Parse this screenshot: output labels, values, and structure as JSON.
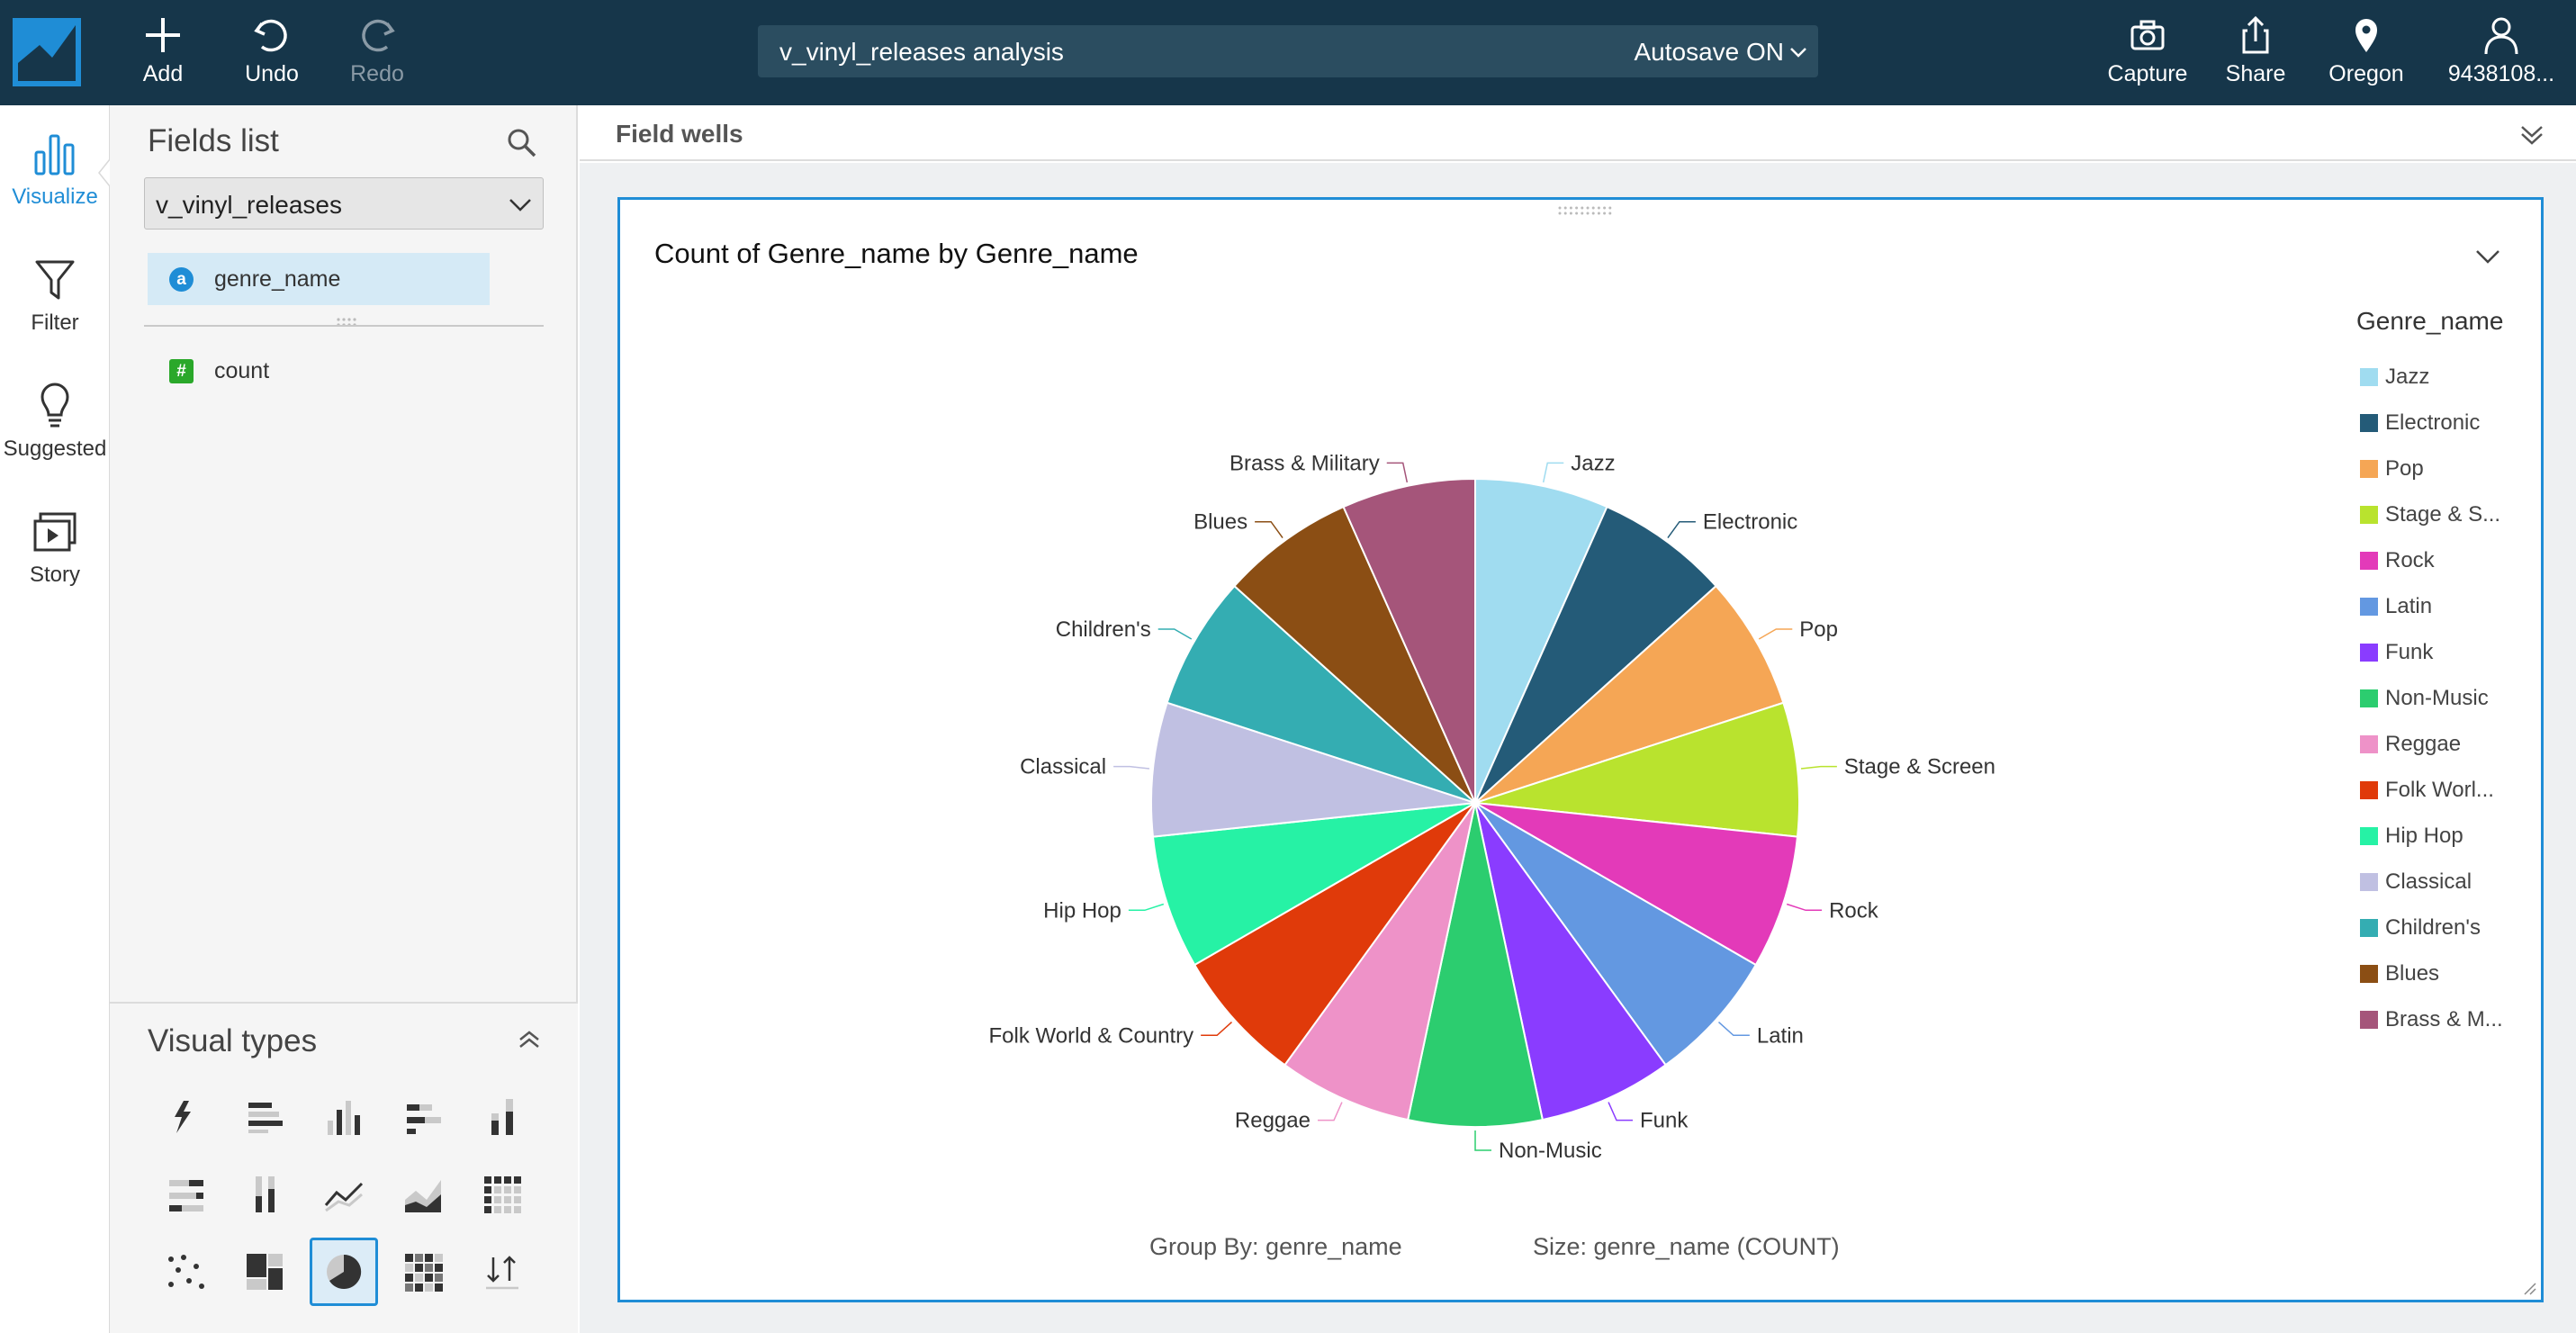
{
  "toolbar": {
    "add_label": "Add",
    "undo_label": "Undo",
    "redo_label": "Redo",
    "analysis_name": "v_vinyl_releases analysis",
    "autosave": "Autosave ON",
    "capture_label": "Capture",
    "share_label": "Share",
    "region_label": "Oregon",
    "account_label": "9438108..."
  },
  "rail": {
    "visualize": "Visualize",
    "filter": "Filter",
    "suggested": "Suggested",
    "story": "Story"
  },
  "fields_panel": {
    "title": "Fields list",
    "dataset": "v_vinyl_releases",
    "fields": [
      {
        "name": "genre_name",
        "type_badge": "a",
        "selected": true
      },
      {
        "name": "count",
        "type_badge": "#",
        "selected": false
      }
    ]
  },
  "visual_types": {
    "title": "Visual types",
    "icons": [
      "autograph-icon",
      "horizontal-bar-icon",
      "vertical-bar-icon",
      "stacked-horizontal-bar-icon",
      "stacked-vertical-bar-icon",
      "percent-horizontal-bar-icon",
      "percent-vertical-bar-icon",
      "line-chart-icon",
      "area-chart-icon",
      "pivot-table-icon",
      "scatter-plot-icon",
      "tree-map-icon",
      "pie-chart-icon",
      "heat-map-icon",
      "sort-icon"
    ],
    "selected": "pie-chart-icon"
  },
  "field_wells": {
    "label": "Field wells"
  },
  "visual": {
    "title": "Count of Genre_name by Genre_name",
    "group_by": "Group By: genre_name",
    "size": "Size: genre_name (COUNT)"
  },
  "legend": {
    "title": "Genre_name",
    "items": [
      "Jazz",
      "Electronic",
      "Pop",
      "Stage & S...",
      "Rock",
      "Latin",
      "Funk",
      "Non-Music",
      "Reggae",
      "Folk Worl...",
      "Hip Hop",
      "Classical",
      "Children's",
      "Blues",
      "Brass & M..."
    ]
  },
  "chart_data": {
    "type": "pie",
    "title": "Count of Genre_name by Genre_name",
    "categories": [
      "Jazz",
      "Electronic",
      "Pop",
      "Stage & Screen",
      "Rock",
      "Latin",
      "Funk",
      "Non-Music",
      "Reggae",
      "Folk World & Country",
      "Hip Hop",
      "Classical",
      "Children's",
      "Blues",
      "Brass & Military"
    ],
    "values": [
      1,
      1,
      1,
      1,
      1,
      1,
      1,
      1,
      1,
      1,
      1,
      1,
      1,
      1,
      1
    ],
    "colors": [
      "#a0dcf0",
      "#245b78",
      "#f5a655",
      "#b9e32e",
      "#e33ab9",
      "#6398e1",
      "#8a3cff",
      "#2ccd6f",
      "#ee92c8",
      "#e03a0a",
      "#26f2a5",
      "#c0c0e2",
      "#34adb2",
      "#8b4e14",
      "#a5557a"
    ],
    "legend_position": "right"
  }
}
